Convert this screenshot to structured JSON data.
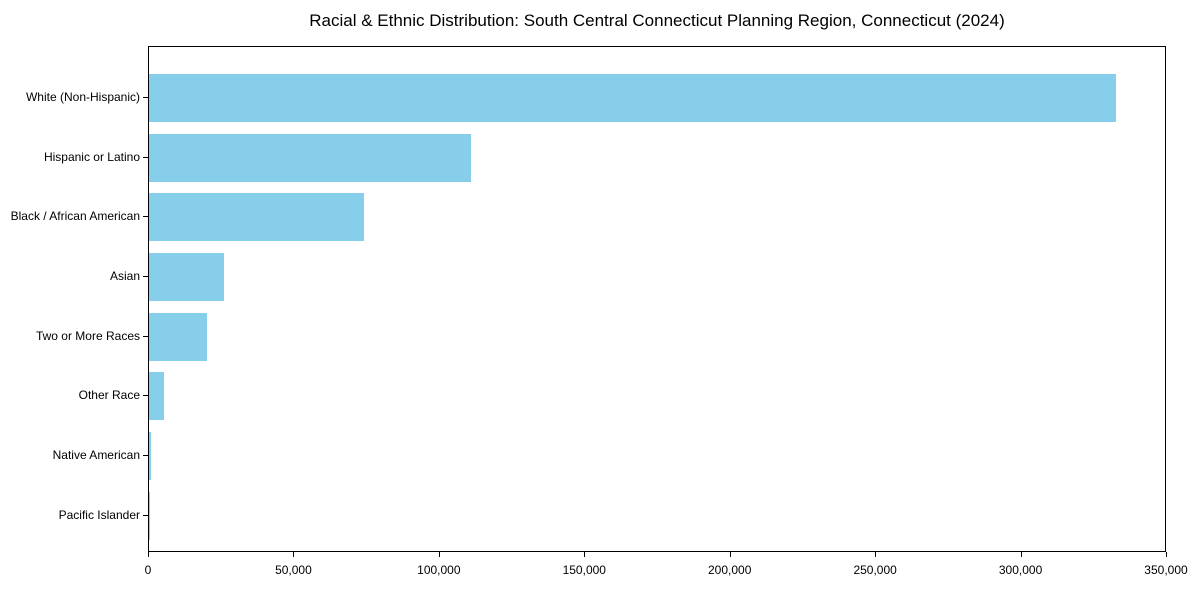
{
  "chart_data": {
    "type": "bar",
    "orientation": "horizontal",
    "title": "Racial & Ethnic Distribution: South Central Connecticut Planning Region, Connecticut (2024)",
    "categories": [
      "White (Non-Hispanic)",
      "Hispanic or Latino",
      "Black / African American",
      "Asian",
      "Two or More Races",
      "Other Race",
      "Native American",
      "Pacific Islander"
    ],
    "values": [
      333000,
      111000,
      74000,
      26000,
      20000,
      5000,
      700,
      150
    ],
    "xlabel": "",
    "ylabel": "",
    "xlim": [
      0,
      350000
    ],
    "xticks": [
      0,
      50000,
      100000,
      150000,
      200000,
      250000,
      300000,
      350000
    ],
    "xtick_labels": [
      "0",
      "50,000",
      "100,000",
      "150,000",
      "200,000",
      "250,000",
      "300,000",
      "350,000"
    ],
    "bar_color": "#87CEEB",
    "axis_color": "#000000",
    "text_color": "#000000",
    "background_color": "#ffffff",
    "grid": false,
    "legend": null
  }
}
